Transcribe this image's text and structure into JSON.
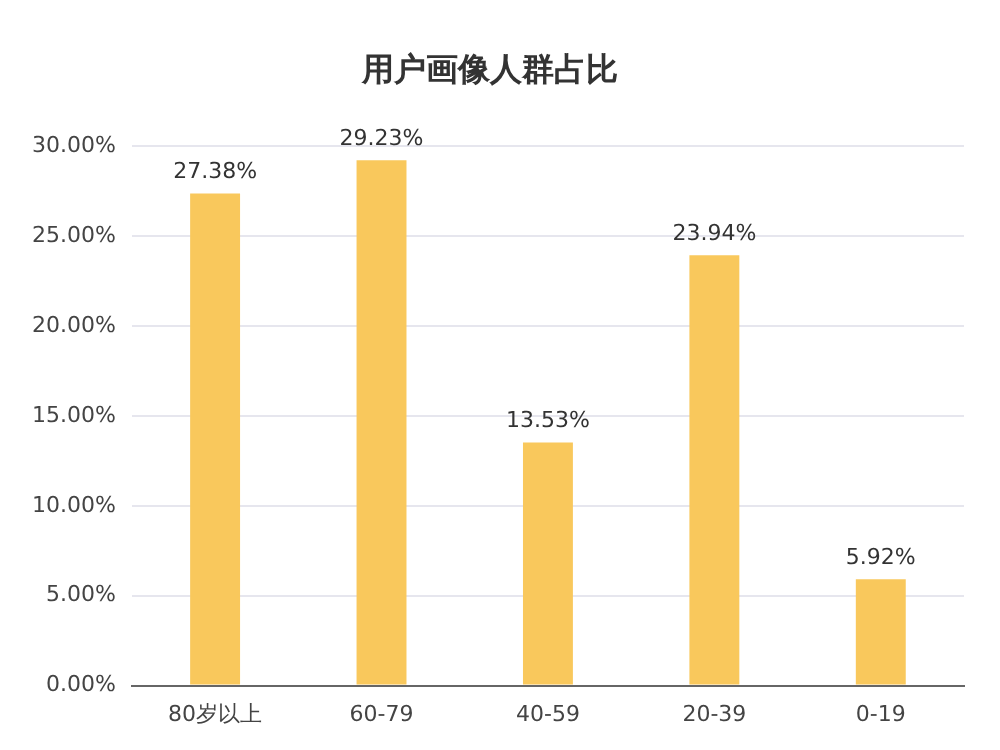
{
  "chart_data": {
    "type": "bar",
    "title": "用户画像人群占比",
    "categories": [
      "80岁以上",
      "60-79",
      "40-59",
      "20-39",
      "0-19"
    ],
    "values": [
      27.38,
      29.23,
      13.53,
      23.94,
      5.92
    ],
    "value_labels": [
      "27.38%",
      "29.23%",
      "13.53%",
      "23.94%",
      "5.92%"
    ],
    "color": "#f9c85c",
    "ylim": [
      0,
      30
    ],
    "yticks": [
      {
        "value": 0,
        "label": "0.00%"
      },
      {
        "value": 5,
        "label": "5.00%"
      },
      {
        "value": 10,
        "label": "10.00%"
      },
      {
        "value": 15,
        "label": "15.00%"
      },
      {
        "value": 20,
        "label": "20.00%"
      },
      {
        "value": 25,
        "label": "25.00%"
      },
      {
        "value": 30,
        "label": "30.00%"
      }
    ],
    "grid": "y"
  }
}
